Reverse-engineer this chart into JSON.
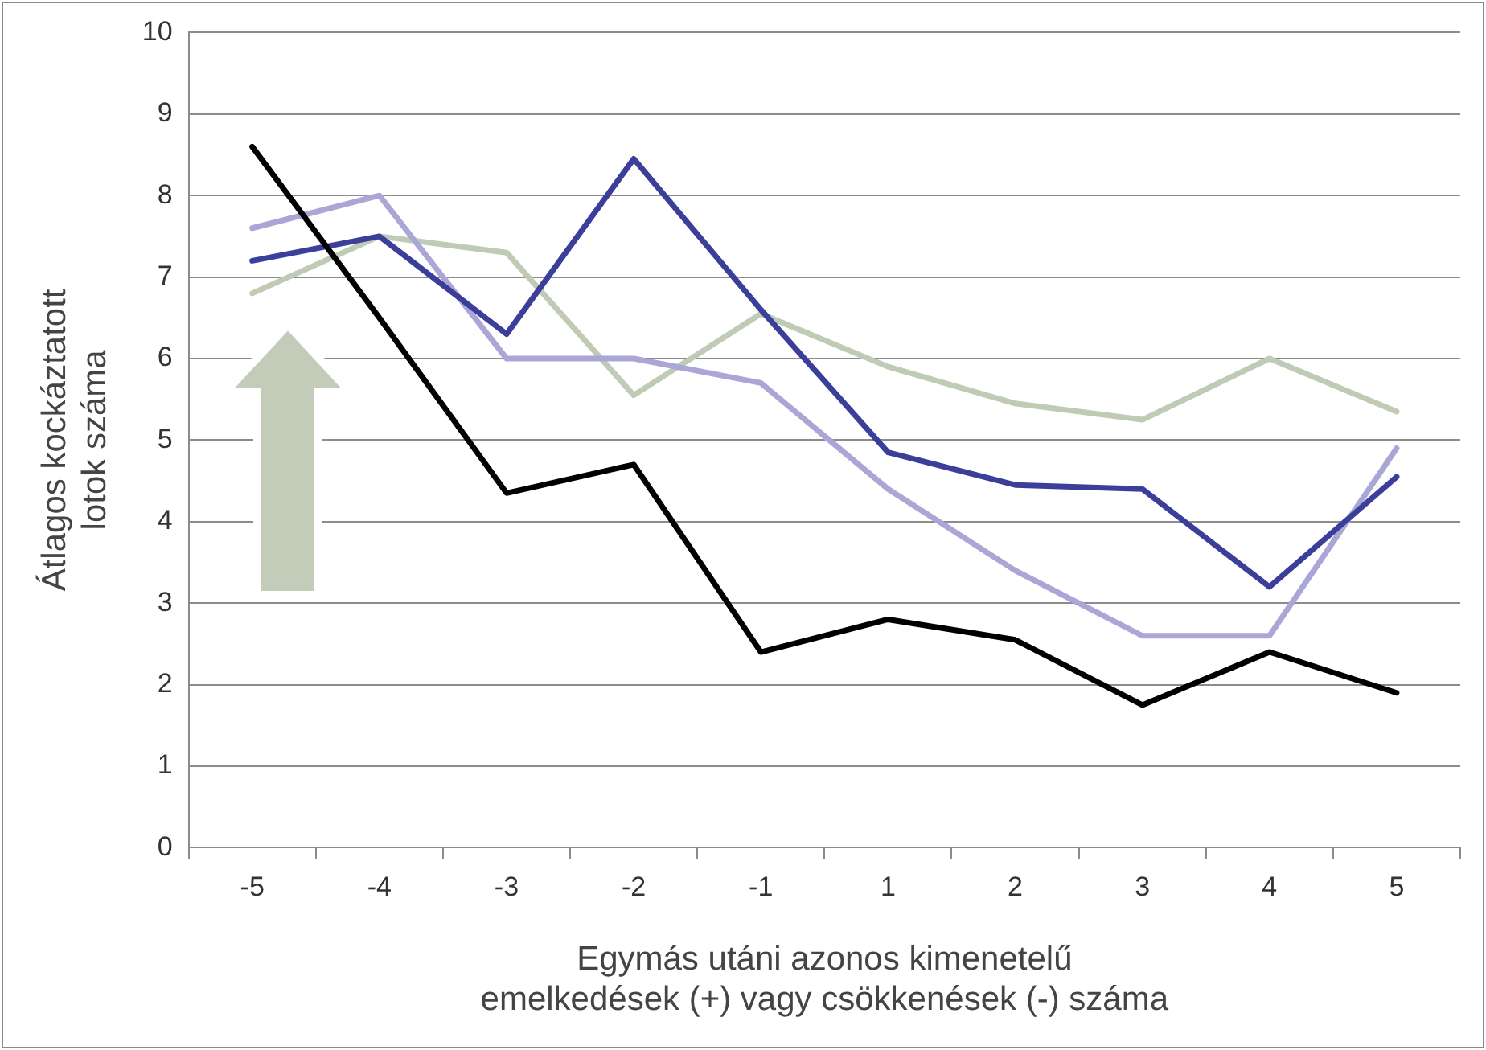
{
  "chart_data": {
    "type": "line",
    "xlabel": "Egymás utáni azonos kimenetelű\nemelkedések (+) vagy csökkenések (-) száma",
    "ylabel": "Átlagos kockáztatott\nlotok száma",
    "categories": [
      "-5",
      "-4",
      "-3",
      "-2",
      "-1",
      "1",
      "2",
      "3",
      "4",
      "5"
    ],
    "series": [
      {
        "color": "#000000",
        "values": [
          8.6,
          6.5,
          4.35,
          4.7,
          2.4,
          2.8,
          2.55,
          1.75,
          2.4,
          1.9
        ]
      },
      {
        "color": "#3b3f9a",
        "values": [
          7.2,
          7.5,
          6.3,
          8.45,
          6.6,
          4.85,
          4.45,
          4.4,
          3.2,
          4.55
        ]
      },
      {
        "color": "#aaa6d6",
        "values": [
          7.6,
          8.0,
          6.0,
          6.0,
          5.7,
          4.4,
          3.4,
          2.6,
          2.6,
          4.9
        ]
      },
      {
        "color": "#bfcbb5",
        "values": [
          6.8,
          7.5,
          7.3,
          5.55,
          6.55,
          5.9,
          5.45,
          5.25,
          6.0,
          5.35
        ]
      }
    ],
    "ylim": [
      0,
      10
    ],
    "yticks": [
      0,
      1,
      2,
      3,
      4,
      5,
      6,
      7,
      8,
      9,
      10
    ],
    "grid": "y",
    "legend": false,
    "marker": "none",
    "line_style": "solid"
  }
}
